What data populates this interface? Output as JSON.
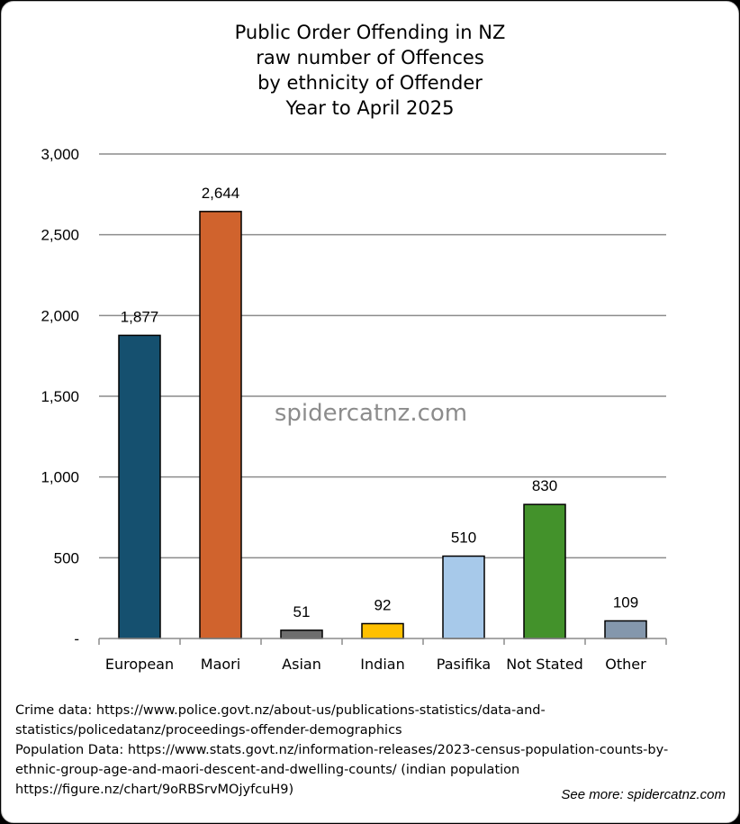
{
  "chart_data": {
    "type": "bar",
    "title_lines": [
      "Public Order Offending in NZ",
      "raw number of Offences",
      "by ethnicity of Offender",
      "Year to April 2025"
    ],
    "categories": [
      "European",
      "Maori",
      "Asian",
      "Indian",
      "Pasifika",
      "Not Stated",
      "Other"
    ],
    "values": [
      1877,
      2644,
      51,
      92,
      510,
      830,
      109
    ],
    "data_labels": [
      "1,877",
      "2,644",
      "51",
      "92",
      "510",
      "830",
      "109"
    ],
    "bar_colors": [
      "#15506f",
      "#d0632d",
      "#6e6e6e",
      "#ffc000",
      "#a7c9ea",
      "#43922b",
      "#8497ac"
    ],
    "ylim": [
      0,
      3000
    ],
    "yticks": [
      0,
      500,
      1000,
      1500,
      2000,
      2500,
      3000
    ],
    "ytick_labels": [
      "-",
      "500",
      "1,000",
      "1,500",
      "2,000",
      "2,500",
      "3,000"
    ],
    "grid": true,
    "legend": "none",
    "watermark": "spidercatnz.com"
  },
  "notes": [
    "Crime data: https://www.police.govt.nz/about-us/publications-statistics/data-and-",
    "statistics/policedatanz/proceedings-offender-demographics",
    "Population Data: https://www.stats.govt.nz/information-releases/2023-census-population-counts-by-",
    "ethnic-group-age-and-maori-descent-and-dwelling-counts/ (indian population",
    "https://figure.nz/chart/9oRBSrvMOjyfcuH9)"
  ],
  "see_more": "See more: spidercatnz.com"
}
